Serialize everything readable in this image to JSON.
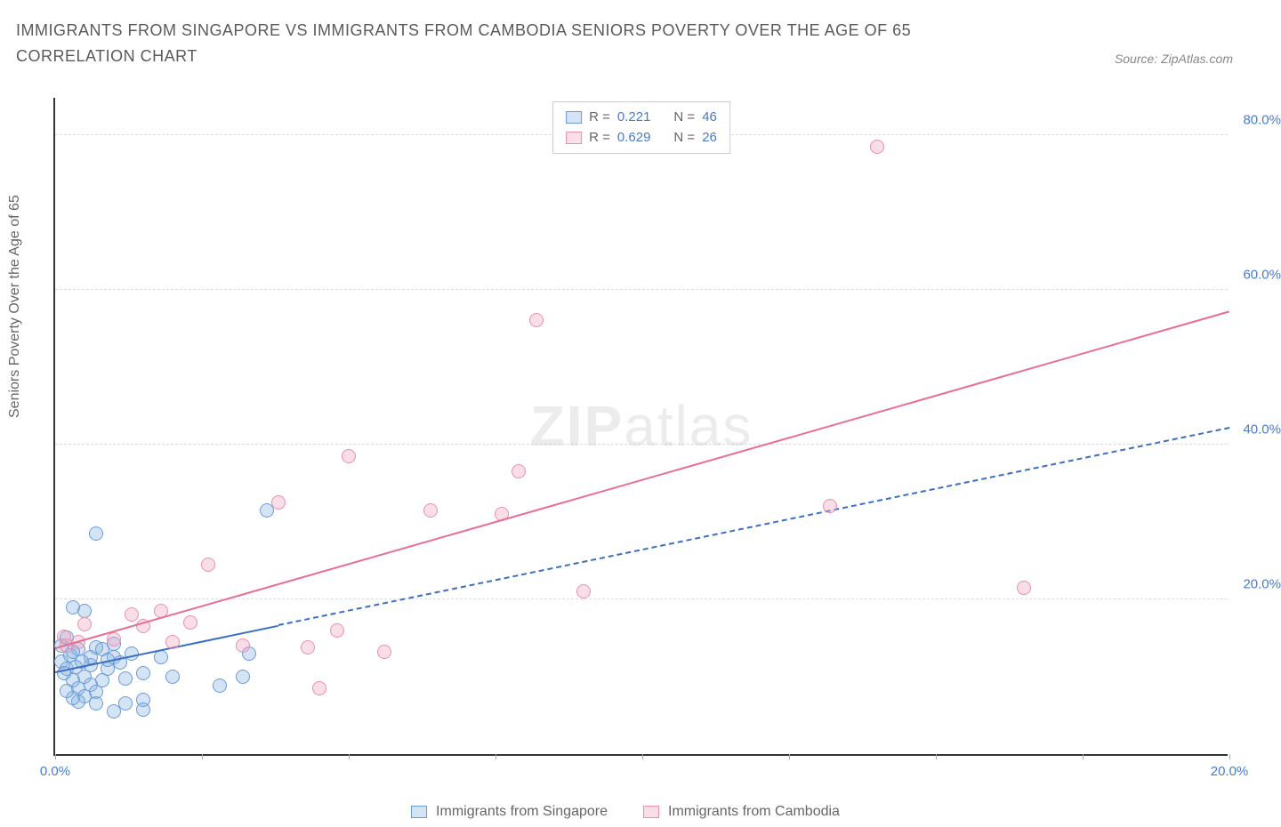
{
  "title": "IMMIGRANTS FROM SINGAPORE VS IMMIGRANTS FROM CAMBODIA SENIORS POVERTY OVER THE AGE OF 65 CORRELATION CHART",
  "source_label": "Source: ZipAtlas.com",
  "y_axis_label": "Seniors Poverty Over the Age of 65",
  "watermark_bold": "ZIP",
  "watermark_light": "atlas",
  "chart": {
    "type": "scatter",
    "xlim": [
      0,
      20
    ],
    "ylim": [
      0,
      85
    ],
    "x_ticks": [
      0,
      2.5,
      5,
      7.5,
      10,
      12.5,
      15,
      17.5,
      20
    ],
    "x_tick_labels": {
      "0": "0.0%",
      "20": "20.0%"
    },
    "y_gridlines": [
      20,
      40,
      60,
      80
    ],
    "y_tick_labels": {
      "20": "20.0%",
      "40": "40.0%",
      "60": "60.0%",
      "80": "80.0%"
    },
    "background_color": "#ffffff",
    "grid_color": "#dddddd",
    "axis_color": "#333333",
    "tick_label_color": "#4a7bc8",
    "point_radius": 8,
    "series": [
      {
        "name": "Immigrants from Singapore",
        "color_fill": "rgba(135,178,226,0.35)",
        "color_stroke": "#6a9bd8",
        "trend_color": "#3b6fc4",
        "trend_dash_extension": true,
        "R": "0.221",
        "N": "46",
        "trend": {
          "x1": 0,
          "y1": 10.5,
          "x2": 3.8,
          "y2": 16.5,
          "ext_x2": 20,
          "ext_y2": 42
        },
        "points": [
          [
            0.1,
            14
          ],
          [
            0.2,
            15
          ],
          [
            0.4,
            13.5
          ],
          [
            0.5,
            10
          ],
          [
            0.3,
            9.5
          ],
          [
            0.4,
            8.5
          ],
          [
            0.6,
            11.5
          ],
          [
            0.6,
            12.5
          ],
          [
            0.7,
            13.8
          ],
          [
            0.5,
            18.5
          ],
          [
            0.3,
            19
          ],
          [
            0.1,
            12
          ],
          [
            0.2,
            11
          ],
          [
            0.15,
            10.5
          ],
          [
            0.25,
            12.8
          ],
          [
            0.3,
            13.2
          ],
          [
            0.45,
            12
          ],
          [
            0.6,
            9
          ],
          [
            0.7,
            8
          ],
          [
            0.8,
            9.5
          ],
          [
            0.9,
            11
          ],
          [
            0.5,
            7.5
          ],
          [
            1.0,
            12.5
          ],
          [
            1.1,
            11.8
          ],
          [
            1.2,
            9.8
          ],
          [
            1.5,
            10.5
          ],
          [
            1.5,
            7
          ],
          [
            2.0,
            10
          ],
          [
            1.8,
            12.5
          ],
          [
            1.2,
            6.5
          ],
          [
            1.0,
            5.5
          ],
          [
            1.3,
            13
          ],
          [
            0.4,
            6.8
          ],
          [
            0.3,
            7.2
          ],
          [
            0.7,
            6.5
          ],
          [
            1.5,
            5.8
          ],
          [
            0.8,
            13.5
          ],
          [
            0.9,
            12.2
          ],
          [
            0.2,
            8.2
          ],
          [
            0.35,
            11.3
          ],
          [
            3.2,
            10
          ],
          [
            3.3,
            13
          ],
          [
            0.7,
            28.5
          ],
          [
            3.6,
            31.5
          ],
          [
            1.0,
            14.2
          ],
          [
            2.8,
            8.8
          ]
        ]
      },
      {
        "name": "Immigrants from Cambodia",
        "color_fill": "rgba(240,160,185,0.35)",
        "color_stroke": "#e890ae",
        "trend_color": "#e86e94",
        "trend_dash_extension": false,
        "R": "0.629",
        "N": "26",
        "trend": {
          "x1": 0,
          "y1": 13.5,
          "x2": 20,
          "y2": 57
        },
        "points": [
          [
            0.2,
            14
          ],
          [
            0.4,
            14.5
          ],
          [
            0.15,
            15.2
          ],
          [
            0.5,
            16.8
          ],
          [
            1.0,
            14.8
          ],
          [
            1.3,
            18
          ],
          [
            1.5,
            16.5
          ],
          [
            1.8,
            18.5
          ],
          [
            2.3,
            17
          ],
          [
            2.0,
            14.5
          ],
          [
            2.6,
            24.5
          ],
          [
            3.2,
            14
          ],
          [
            4.3,
            13.8
          ],
          [
            4.5,
            8.5
          ],
          [
            4.8,
            16
          ],
          [
            5.6,
            13.2
          ],
          [
            5.0,
            38.5
          ],
          [
            6.4,
            31.5
          ],
          [
            7.6,
            31
          ],
          [
            7.9,
            36.5
          ],
          [
            8.2,
            56
          ],
          [
            3.8,
            32.5
          ],
          [
            9.0,
            21
          ],
          [
            14.0,
            78.5
          ],
          [
            13.2,
            32
          ],
          [
            16.5,
            21.5
          ]
        ]
      }
    ]
  },
  "legend_top": {
    "r_label": "R =",
    "n_label": "N ="
  }
}
